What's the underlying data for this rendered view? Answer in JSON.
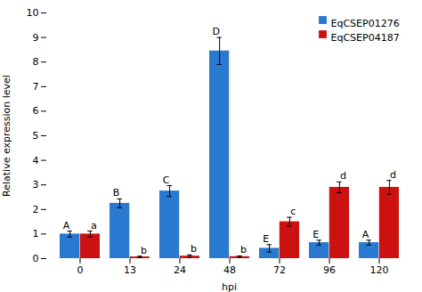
{
  "chart_data": {
    "type": "bar",
    "categories": [
      "0",
      "13",
      "24",
      "48",
      "72",
      "96",
      "120"
    ],
    "series": [
      {
        "name": "EqCSEP01276",
        "color": "#2979d0",
        "values": [
          1.0,
          2.25,
          2.75,
          8.45,
          0.42,
          0.65,
          0.65
        ],
        "errors": [
          0.12,
          0.18,
          0.22,
          0.55,
          0.15,
          0.1,
          0.1
        ],
        "letters": [
          "A",
          "B",
          "C",
          "D",
          "E",
          "E",
          "A"
        ]
      },
      {
        "name": "EqCSEP04187",
        "color": "#cc1111",
        "values": [
          1.0,
          0.07,
          0.1,
          0.08,
          1.5,
          2.9,
          2.9
        ],
        "errors": [
          0.12,
          0.03,
          0.05,
          0.03,
          0.18,
          0.22,
          0.28
        ],
        "letters": [
          "a",
          "b",
          "b",
          "b",
          "c",
          "d",
          "d"
        ]
      }
    ],
    "xlabel": "hpi",
    "ylabel": "Relative expression level",
    "ylim": [
      0,
      10
    ],
    "yticks": [
      0,
      1,
      2,
      3,
      4,
      5,
      6,
      7,
      8,
      9,
      10
    ],
    "grid": false,
    "legend": "upper right"
  }
}
